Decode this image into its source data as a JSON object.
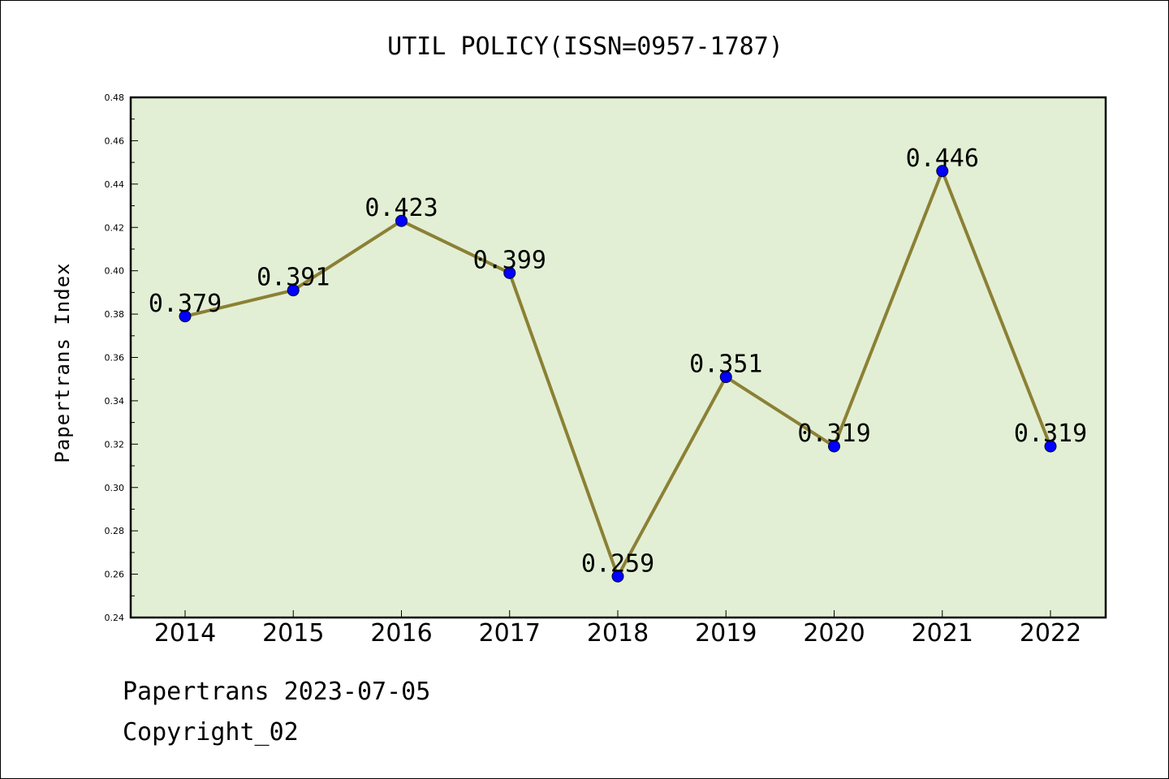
{
  "chart_data": {
    "type": "line",
    "title": "UTIL POLICY(ISSN=0957-1787)",
    "xlabel": "",
    "ylabel": "Papertrans Index",
    "categories": [
      "2014",
      "2015",
      "2016",
      "2017",
      "2018",
      "2019",
      "2020",
      "2021",
      "2022"
    ],
    "values": [
      0.379,
      0.391,
      0.423,
      0.399,
      0.259,
      0.351,
      0.319,
      0.446,
      0.319
    ],
    "data_labels": [
      "0.379",
      "0.391",
      "0.423",
      "0.399",
      "0.259",
      "0.351",
      "0.319",
      "0.446",
      "0.319"
    ],
    "ylim": [
      0.24,
      0.48
    ],
    "yticks": [
      "0.24",
      "0.26",
      "0.28",
      "0.30",
      "0.32",
      "0.34",
      "0.36",
      "0.38",
      "0.40",
      "0.42",
      "0.44",
      "0.46",
      "0.48"
    ],
    "grid": false,
    "colors": {
      "line": "#8b8035",
      "marker": "#0000ff",
      "plot_bg": "#e2efd4"
    }
  },
  "footer": {
    "line1": "Papertrans 2023-07-05",
    "line2": "Copyright_02"
  }
}
